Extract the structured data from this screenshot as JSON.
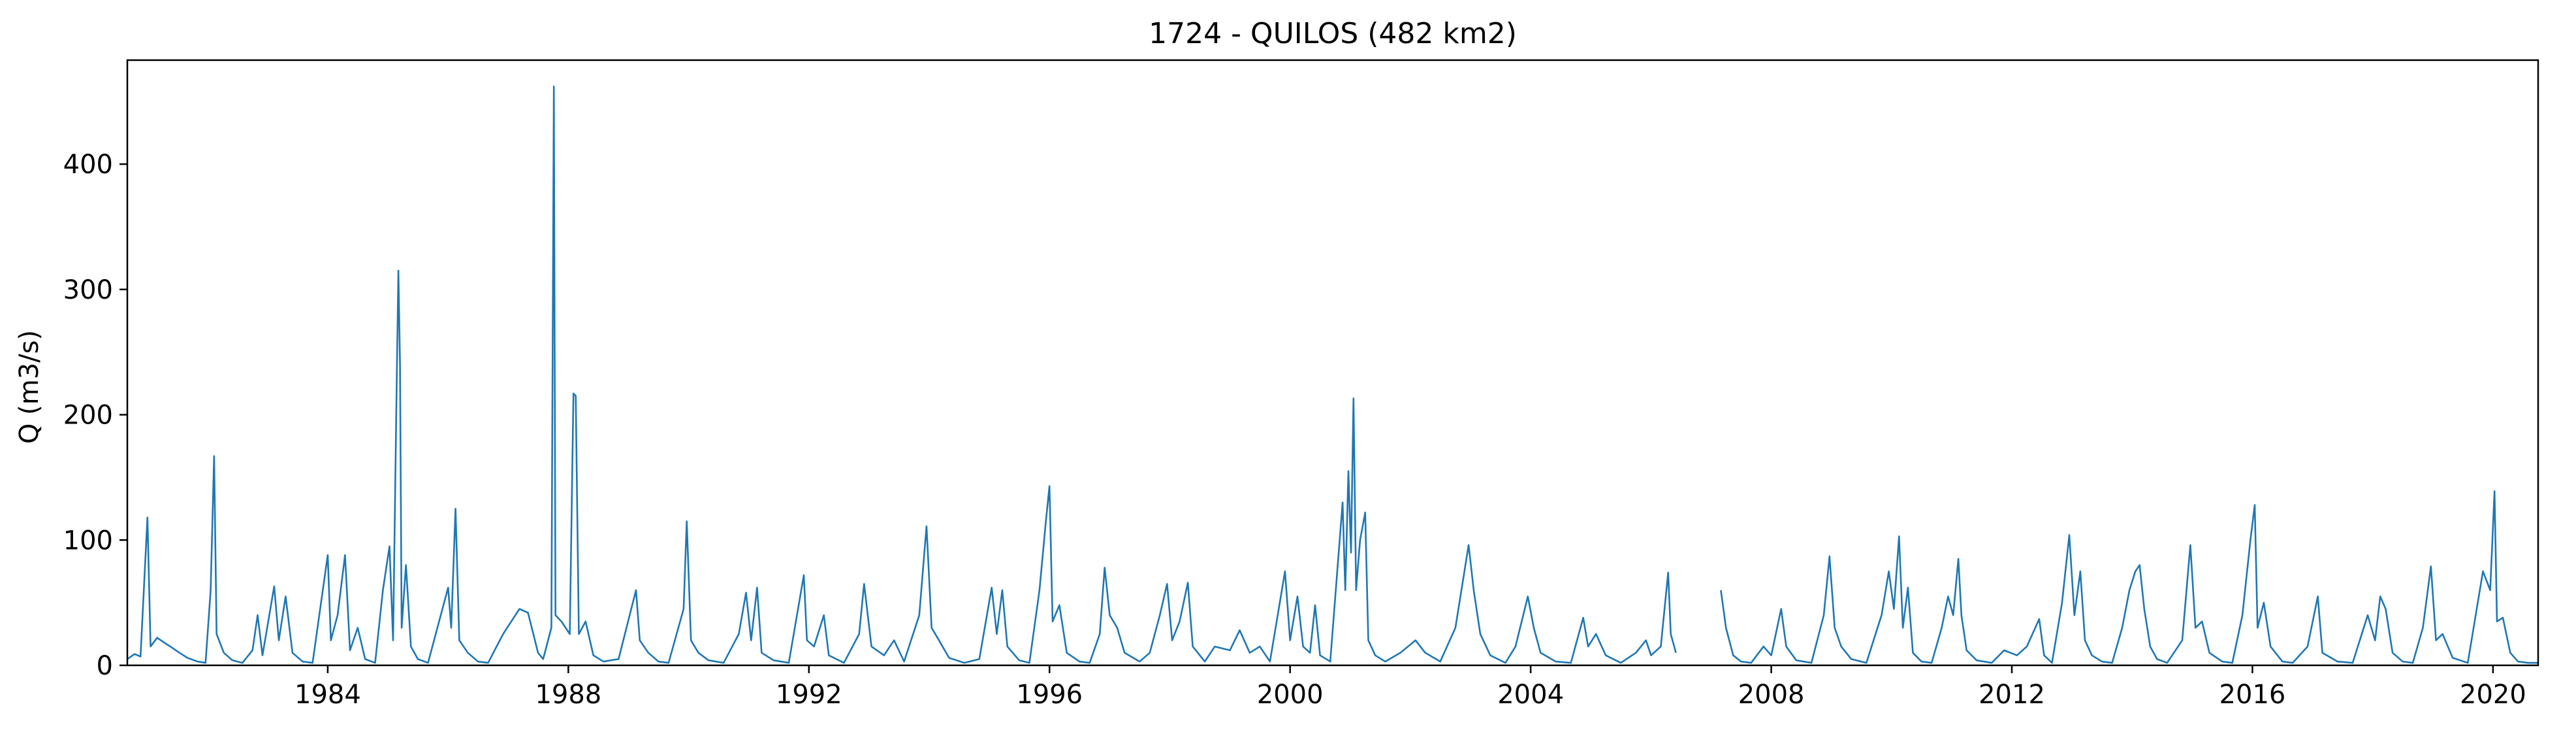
{
  "chart_data": {
    "type": "line",
    "title": "1724 - QUILOS (482 km2)",
    "xlabel": "",
    "ylabel": "Q (m3/s)",
    "xlim": [
      "1980-09-01",
      "2020-10-01"
    ],
    "ylim": [
      0,
      483
    ],
    "grid": false,
    "x_ticks": [
      "1984",
      "1988",
      "1992",
      "1996",
      "2000",
      "2004",
      "2008",
      "2012",
      "2016",
      "2020"
    ],
    "y_ticks": [
      0,
      100,
      200,
      300,
      400
    ],
    "series": [
      {
        "color": "#1f77b4",
        "data": [
          [
            "1980-09-01",
            5
          ],
          [
            "1980-10-15",
            9
          ],
          [
            "1980-11-20",
            7
          ],
          [
            "1981-01-01",
            118
          ],
          [
            "1981-01-20",
            15
          ],
          [
            "1981-03-01",
            22
          ],
          [
            "1981-04-15",
            18
          ],
          [
            "1981-06-01",
            14
          ],
          [
            "1981-07-15",
            10
          ],
          [
            "1981-09-01",
            6
          ],
          [
            "1981-11-01",
            3
          ],
          [
            "1981-12-20",
            2
          ],
          [
            "1982-01-20",
            60
          ],
          [
            "1982-02-10",
            167
          ],
          [
            "1982-02-25",
            25
          ],
          [
            "1982-04-10",
            10
          ],
          [
            "1982-06-01",
            4
          ],
          [
            "1982-08-01",
            2
          ],
          [
            "1982-10-01",
            12
          ],
          [
            "1982-11-01",
            40
          ],
          [
            "1982-12-01",
            8
          ],
          [
            "1983-02-10",
            63
          ],
          [
            "1983-03-10",
            20
          ],
          [
            "1983-04-20",
            55
          ],
          [
            "1983-06-01",
            10
          ],
          [
            "1983-08-01",
            3
          ],
          [
            "1983-10-01",
            2
          ],
          [
            "1984-01-01",
            88
          ],
          [
            "1984-01-20",
            20
          ],
          [
            "1984-03-01",
            40
          ],
          [
            "1984-04-15",
            88
          ],
          [
            "1984-05-15",
            12
          ],
          [
            "1984-07-01",
            30
          ],
          [
            "1984-08-15",
            5
          ],
          [
            "1984-10-15",
            2
          ],
          [
            "1984-12-01",
            60
          ],
          [
            "1985-01-10",
            95
          ],
          [
            "1985-02-01",
            20
          ],
          [
            "1985-02-20",
            200
          ],
          [
            "1985-03-05",
            315
          ],
          [
            "1985-03-15",
            240
          ],
          [
            "1985-03-25",
            30
          ],
          [
            "1985-04-20",
            80
          ],
          [
            "1985-05-20",
            15
          ],
          [
            "1985-07-01",
            5
          ],
          [
            "1985-09-01",
            2
          ],
          [
            "1986-01-01",
            62
          ],
          [
            "1986-01-20",
            30
          ],
          [
            "1986-02-15",
            125
          ],
          [
            "1986-03-10",
            20
          ],
          [
            "1986-05-01",
            10
          ],
          [
            "1986-07-01",
            3
          ],
          [
            "1986-09-01",
            2
          ],
          [
            "1986-12-01",
            25
          ],
          [
            "1987-03-10",
            45
          ],
          [
            "1987-05-01",
            42
          ],
          [
            "1987-07-01",
            10
          ],
          [
            "1987-08-01",
            5
          ],
          [
            "1987-09-20",
            30
          ],
          [
            "1987-10-05",
            462
          ],
          [
            "1987-10-15",
            40
          ],
          [
            "1987-11-20",
            35
          ],
          [
            "1988-01-10",
            25
          ],
          [
            "1988-02-01",
            217
          ],
          [
            "1988-02-15",
            215
          ],
          [
            "1988-03-05",
            25
          ],
          [
            "1988-04-15",
            35
          ],
          [
            "1988-06-01",
            8
          ],
          [
            "1988-08-01",
            3
          ],
          [
            "1988-11-01",
            5
          ],
          [
            "1989-02-15",
            60
          ],
          [
            "1989-03-10",
            20
          ],
          [
            "1989-05-01",
            10
          ],
          [
            "1989-07-01",
            3
          ],
          [
            "1989-09-01",
            2
          ],
          [
            "1989-12-01",
            45
          ],
          [
            "1989-12-20",
            115
          ],
          [
            "1990-01-15",
            20
          ],
          [
            "1990-03-01",
            10
          ],
          [
            "1990-05-01",
            4
          ],
          [
            "1990-08-01",
            2
          ],
          [
            "1990-11-01",
            25
          ],
          [
            "1990-12-15",
            58
          ],
          [
            "1991-01-15",
            20
          ],
          [
            "1991-02-20",
            62
          ],
          [
            "1991-03-20",
            10
          ],
          [
            "1991-06-01",
            4
          ],
          [
            "1991-09-01",
            2
          ],
          [
            "1991-12-01",
            72
          ],
          [
            "1991-12-20",
            20
          ],
          [
            "1992-02-01",
            15
          ],
          [
            "1992-04-01",
            40
          ],
          [
            "1992-05-01",
            8
          ],
          [
            "1992-08-01",
            2
          ],
          [
            "1992-11-01",
            25
          ],
          [
            "1992-12-01",
            65
          ],
          [
            "1993-01-15",
            15
          ],
          [
            "1993-04-01",
            8
          ],
          [
            "1993-06-01",
            20
          ],
          [
            "1993-08-01",
            3
          ],
          [
            "1993-11-01",
            40
          ],
          [
            "1993-12-15",
            111
          ],
          [
            "1994-01-15",
            30
          ],
          [
            "1994-03-01",
            20
          ],
          [
            "1994-05-01",
            6
          ],
          [
            "1994-08-01",
            2
          ],
          [
            "1994-11-01",
            5
          ],
          [
            "1995-01-15",
            62
          ],
          [
            "1995-02-15",
            25
          ],
          [
            "1995-03-20",
            60
          ],
          [
            "1995-04-20",
            15
          ],
          [
            "1995-07-01",
            4
          ],
          [
            "1995-09-01",
            2
          ],
          [
            "1995-11-01",
            60
          ],
          [
            "1995-12-10",
            115
          ],
          [
            "1996-01-01",
            143
          ],
          [
            "1996-01-20",
            35
          ],
          [
            "1996-03-01",
            48
          ],
          [
            "1996-04-15",
            10
          ],
          [
            "1996-07-01",
            3
          ],
          [
            "1996-09-01",
            2
          ],
          [
            "1996-11-01",
            25
          ],
          [
            "1996-12-01",
            78
          ],
          [
            "1997-01-01",
            40
          ],
          [
            "1997-02-15",
            30
          ],
          [
            "1997-04-01",
            10
          ],
          [
            "1997-07-01",
            3
          ],
          [
            "1997-09-01",
            10
          ],
          [
            "1997-11-01",
            40
          ],
          [
            "1997-12-15",
            65
          ],
          [
            "1998-01-15",
            20
          ],
          [
            "1998-03-01",
            35
          ],
          [
            "1998-04-20",
            66
          ],
          [
            "1998-05-20",
            15
          ],
          [
            "1998-08-01",
            3
          ],
          [
            "1998-10-01",
            15
          ],
          [
            "1999-01-01",
            12
          ],
          [
            "1999-03-01",
            28
          ],
          [
            "1999-05-01",
            10
          ],
          [
            "1999-07-01",
            15
          ],
          [
            "1999-09-01",
            3
          ],
          [
            "1999-12-01",
            75
          ],
          [
            "2000-01-01",
            20
          ],
          [
            "2000-02-15",
            55
          ],
          [
            "2000-03-20",
            15
          ],
          [
            "2000-05-01",
            10
          ],
          [
            "2000-06-01",
            48
          ],
          [
            "2000-07-01",
            8
          ],
          [
            "2000-09-01",
            3
          ],
          [
            "2000-11-15",
            130
          ],
          [
            "2000-12-01",
            60
          ],
          [
            "2000-12-20",
            155
          ],
          [
            "2001-01-05",
            90
          ],
          [
            "2001-01-20",
            213
          ],
          [
            "2001-02-05",
            60
          ],
          [
            "2001-03-01",
            100
          ],
          [
            "2001-04-01",
            122
          ],
          [
            "2001-04-20",
            20
          ],
          [
            "2001-06-01",
            8
          ],
          [
            "2001-08-01",
            3
          ],
          [
            "2001-11-01",
            10
          ],
          [
            "2002-02-01",
            20
          ],
          [
            "2002-04-01",
            10
          ],
          [
            "2002-07-01",
            3
          ],
          [
            "2002-10-01",
            30
          ],
          [
            "2002-12-20",
            96
          ],
          [
            "2003-01-20",
            60
          ],
          [
            "2003-03-01",
            25
          ],
          [
            "2003-05-01",
            8
          ],
          [
            "2003-08-01",
            2
          ],
          [
            "2003-10-01",
            15
          ],
          [
            "2003-12-15",
            55
          ],
          [
            "2004-01-20",
            30
          ],
          [
            "2004-03-01",
            10
          ],
          [
            "2004-06-01",
            3
          ],
          [
            "2004-09-01",
            2
          ],
          [
            "2004-11-15",
            38
          ],
          [
            "2004-12-15",
            15
          ],
          [
            "2005-02-01",
            25
          ],
          [
            "2005-04-01",
            8
          ],
          [
            "2005-07-01",
            2
          ],
          [
            "2005-10-01",
            10
          ],
          [
            "2005-12-01",
            20
          ],
          [
            "2006-01-01",
            8
          ],
          [
            "2006-03-01",
            15
          ],
          [
            "2006-04-15",
            74
          ],
          [
            "2006-05-01",
            25
          ],
          [
            "2006-06-01",
            10
          ],
          [
            "2006-07-01",
            null
          ],
          [
            "2007-03-01",
            60
          ],
          [
            "2007-04-01",
            30
          ],
          [
            "2007-05-15",
            8
          ],
          [
            "2007-07-01",
            3
          ],
          [
            "2007-09-01",
            2
          ],
          [
            "2007-11-15",
            15
          ],
          [
            "2008-01-01",
            8
          ],
          [
            "2008-03-01",
            45
          ],
          [
            "2008-04-01",
            15
          ],
          [
            "2008-06-01",
            4
          ],
          [
            "2008-09-01",
            2
          ],
          [
            "2008-11-15",
            40
          ],
          [
            "2008-12-20",
            87
          ],
          [
            "2009-01-20",
            30
          ],
          [
            "2009-03-01",
            15
          ],
          [
            "2009-05-01",
            5
          ],
          [
            "2009-08-01",
            2
          ],
          [
            "2009-11-01",
            40
          ],
          [
            "2009-12-15",
            75
          ],
          [
            "2010-01-15",
            45
          ],
          [
            "2010-02-15",
            103
          ],
          [
            "2010-03-10",
            30
          ],
          [
            "2010-04-10",
            62
          ],
          [
            "2010-05-10",
            10
          ],
          [
            "2010-07-01",
            3
          ],
          [
            "2010-09-01",
            2
          ],
          [
            "2010-11-01",
            30
          ],
          [
            "2010-12-10",
            55
          ],
          [
            "2011-01-10",
            40
          ],
          [
            "2011-02-10",
            85
          ],
          [
            "2011-03-01",
            40
          ],
          [
            "2011-04-01",
            12
          ],
          [
            "2011-06-01",
            4
          ],
          [
            "2011-09-01",
            2
          ],
          [
            "2011-11-15",
            12
          ],
          [
            "2012-02-01",
            8
          ],
          [
            "2012-04-01",
            15
          ],
          [
            "2012-06-15",
            37
          ],
          [
            "2012-07-15",
            8
          ],
          [
            "2012-09-01",
            2
          ],
          [
            "2012-11-01",
            50
          ],
          [
            "2012-12-15",
            104
          ],
          [
            "2013-01-15",
            40
          ],
          [
            "2013-02-20",
            75
          ],
          [
            "2013-03-20",
            20
          ],
          [
            "2013-05-01",
            8
          ],
          [
            "2013-07-01",
            3
          ],
          [
            "2013-09-01",
            2
          ],
          [
            "2013-11-01",
            30
          ],
          [
            "2013-12-15",
            60
          ],
          [
            "2014-01-20",
            75
          ],
          [
            "2014-02-15",
            80
          ],
          [
            "2014-03-15",
            45
          ],
          [
            "2014-04-20",
            15
          ],
          [
            "2014-06-01",
            5
          ],
          [
            "2014-08-01",
            2
          ],
          [
            "2014-11-01",
            20
          ],
          [
            "2014-12-20",
            96
          ],
          [
            "2015-01-20",
            30
          ],
          [
            "2015-03-01",
            35
          ],
          [
            "2015-04-15",
            10
          ],
          [
            "2015-07-01",
            3
          ],
          [
            "2015-09-01",
            2
          ],
          [
            "2015-11-01",
            40
          ],
          [
            "2015-12-20",
            100
          ],
          [
            "2016-01-15",
            128
          ],
          [
            "2016-02-01",
            30
          ],
          [
            "2016-03-10",
            50
          ],
          [
            "2016-04-20",
            15
          ],
          [
            "2016-07-01",
            3
          ],
          [
            "2016-09-01",
            2
          ],
          [
            "2016-12-01",
            15
          ],
          [
            "2017-02-01",
            55
          ],
          [
            "2017-03-01",
            10
          ],
          [
            "2017-06-01",
            3
          ],
          [
            "2017-09-01",
            2
          ],
          [
            "2017-12-01",
            40
          ],
          [
            "2018-01-15",
            20
          ],
          [
            "2018-02-15",
            55
          ],
          [
            "2018-03-20",
            45
          ],
          [
            "2018-05-01",
            10
          ],
          [
            "2018-07-01",
            3
          ],
          [
            "2018-09-01",
            2
          ],
          [
            "2018-11-01",
            30
          ],
          [
            "2018-12-20",
            79
          ],
          [
            "2019-01-20",
            20
          ],
          [
            "2019-03-01",
            25
          ],
          [
            "2019-05-01",
            6
          ],
          [
            "2019-08-01",
            2
          ],
          [
            "2019-11-01",
            75
          ],
          [
            "2019-12-15",
            60
          ],
          [
            "2020-01-10",
            139
          ],
          [
            "2020-01-25",
            35
          ],
          [
            "2020-03-01",
            38
          ],
          [
            "2020-04-15",
            10
          ],
          [
            "2020-06-01",
            3
          ],
          [
            "2020-08-01",
            2
          ],
          [
            "2020-10-01",
            2
          ]
        ]
      }
    ]
  }
}
